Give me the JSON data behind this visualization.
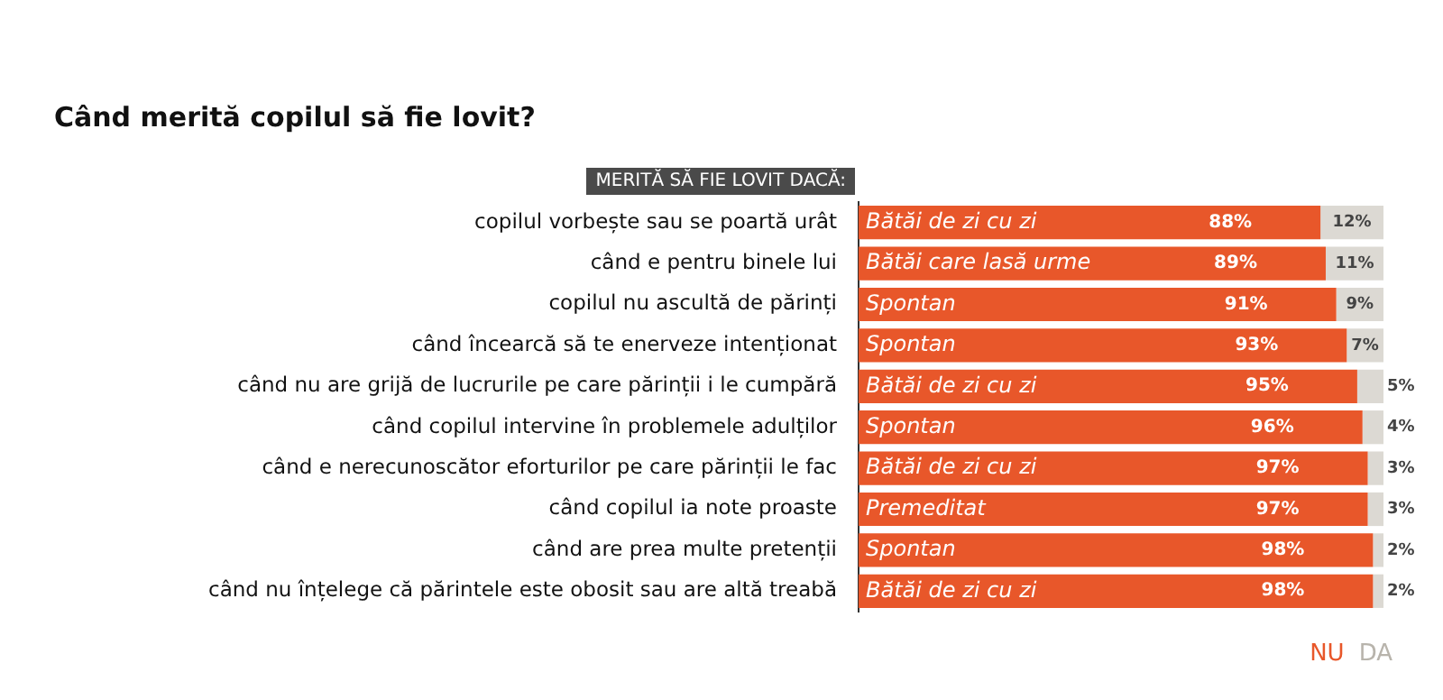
{
  "chart_data": {
    "type": "bar",
    "orientation": "horizontal",
    "stacked": true,
    "title": "Când merită copilul să fie lovit?",
    "ylabel": "MERITĂ SĂ FIE LOVIT DACĂ:",
    "categories": [
      "copilul vorbește sau se poartă urât",
      "când e pentru binele lui",
      "copilul nu ascultă de părinți",
      "când încearcă să te enerveze intenționat",
      "când nu are grijă de lucrurile pe care părinții i le cumpără",
      "când copilul intervine în problemele adulților",
      "când e nerecunoscător eforturilor pe care părinții le fac",
      "când copilul ia note proaste",
      "când are prea multe pretenții",
      "când nu înțelege că părintele este obosit sau are altă treabă"
    ],
    "series": [
      {
        "name": "NU",
        "color": "#e8572a",
        "values": [
          88,
          89,
          91,
          93,
          95,
          96,
          97,
          97,
          98,
          98
        ],
        "value_labels": [
          "88%",
          "89%",
          "91%",
          "93%",
          "95%",
          "96%",
          "97%",
          "97%",
          "98%",
          "98%"
        ]
      },
      {
        "name": "DA",
        "color": "#dcd9d3",
        "values": [
          12,
          11,
          9,
          7,
          5,
          4,
          3,
          3,
          2,
          2
        ],
        "value_labels": [
          "12%",
          "11%",
          "9%",
          "7%",
          "5%",
          "4%",
          "3%",
          "3%",
          "2%",
          "2%"
        ]
      }
    ],
    "annotations": [
      {
        "text": "Bătăi de zi cu zi",
        "y": "copilul vorbește sau se poartă urât"
      },
      {
        "text": "Bătăi care lasă urme",
        "y": "când e pentru binele lui"
      },
      {
        "text": "Spontan",
        "y": "copilul nu ascultă de părinți"
      },
      {
        "text": "Spontan",
        "y": "când încearcă să te enerveze intenționat"
      },
      {
        "text": "Bătăi de zi cu zi",
        "y": "când nu are grijă de lucrurile pe care părinții i le cumpără"
      },
      {
        "text": "Spontan",
        "y": "când copilul intervine în problemele adulților"
      },
      {
        "text": "Bătăi de zi cu zi",
        "y": "când e nerecunoscător eforturilor pe care părinții le fac"
      },
      {
        "text": "Premeditat",
        "y": "când copilul ia note proaste"
      },
      {
        "text": "Spontan",
        "y": "când are prea multe pretenții"
      },
      {
        "text": "Bătăi de zi cu zi",
        "y": "când nu înțelege că părintele este obosit sau are altă treabă"
      }
    ],
    "tick_labels": "y",
    "grid": false,
    "legend": "bottom right"
  }
}
